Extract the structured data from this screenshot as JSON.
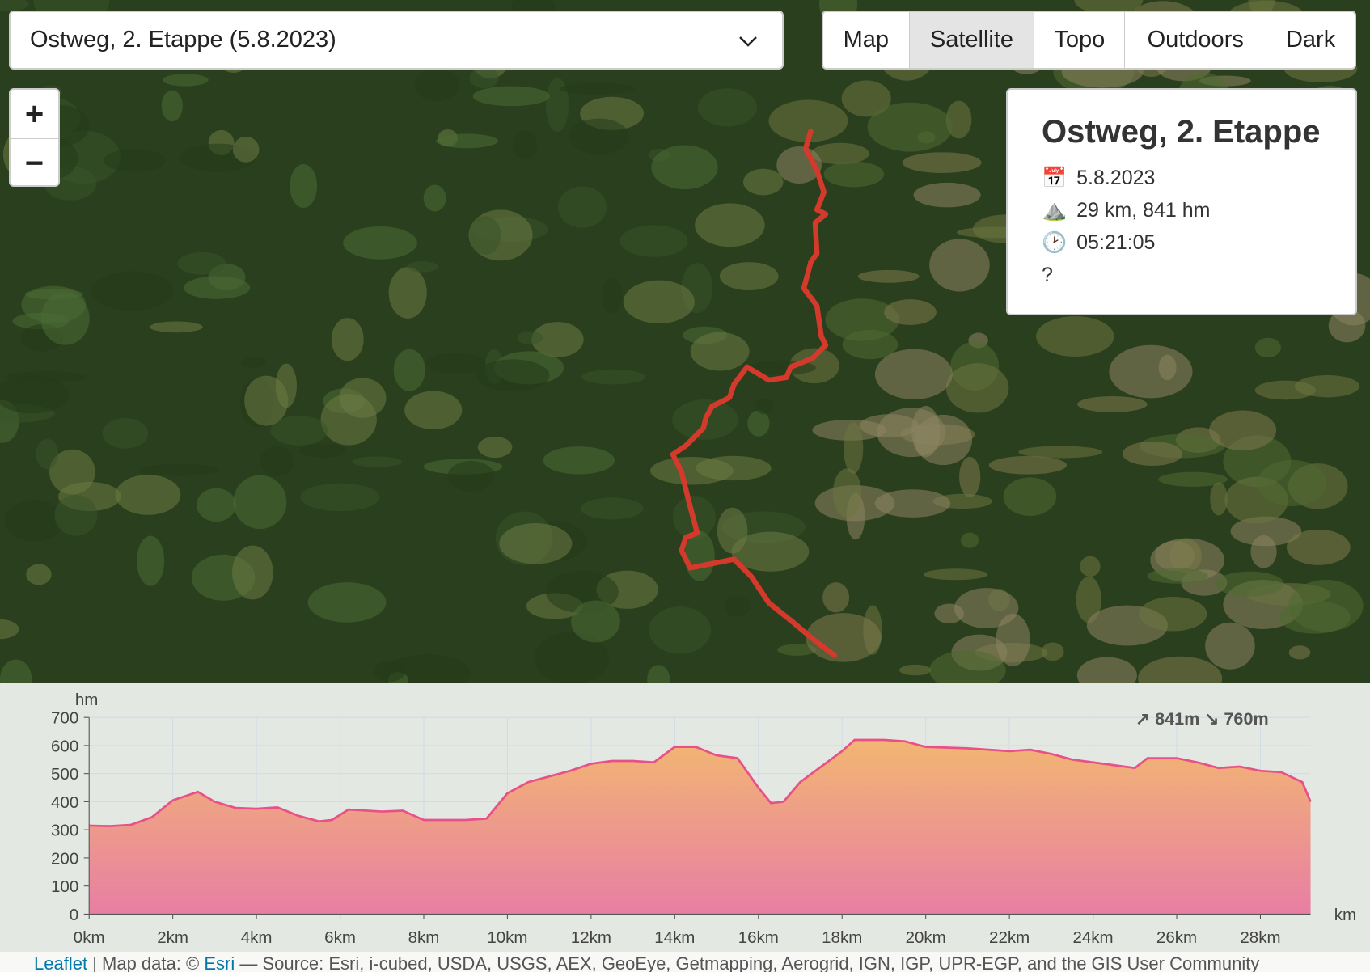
{
  "route_select": "Ostweg, 2. Etappe (5.8.2023)",
  "zoom": {
    "in": "+",
    "out": "−"
  },
  "layers": {
    "items": [
      "Map",
      "Satellite",
      "Topo",
      "Outdoors",
      "Dark"
    ],
    "active": 1
  },
  "info": {
    "title": "Ostweg, 2. Etappe",
    "rows": [
      {
        "icon": "📅",
        "text": "5.8.2023"
      },
      {
        "icon": "⛰️",
        "text": "29 km, 841 hm"
      },
      {
        "icon": "🕑",
        "text": "05:21:05"
      }
    ],
    "note": "?"
  },
  "chart_data": {
    "type": "area",
    "y_label": "hm",
    "x_unit": "km",
    "summary": "↗ 841m ↘ 760m",
    "color": "#e8508a",
    "grid": true,
    "x": [
      0,
      0.5,
      1,
      1.5,
      2,
      2.6,
      3,
      3.5,
      4,
      4.5,
      5,
      5.5,
      5.8,
      6.2,
      7,
      7.5,
      8,
      9,
      9.5,
      10,
      10.5,
      11,
      11.5,
      12,
      12.5,
      13,
      13.5,
      14,
      14.5,
      15,
      15.5,
      16,
      16.3,
      16.6,
      17,
      17.5,
      18,
      18.3,
      19,
      19.5,
      20,
      21,
      22,
      22.5,
      23,
      23.5,
      24,
      24.5,
      25,
      25.3,
      26,
      26.5,
      27,
      27.5,
      28,
      28.5,
      29,
      29.2
    ],
    "values": [
      315,
      313,
      318,
      345,
      405,
      435,
      400,
      378,
      375,
      380,
      350,
      330,
      335,
      372,
      365,
      368,
      335,
      335,
      340,
      430,
      470,
      490,
      510,
      535,
      545,
      545,
      540,
      595,
      595,
      565,
      555,
      450,
      395,
      400,
      470,
      525,
      580,
      620,
      620,
      615,
      595,
      590,
      580,
      585,
      570,
      550,
      540,
      530,
      520,
      555,
      555,
      540,
      520,
      525,
      510,
      505,
      470,
      400
    ],
    "xlim": [
      0,
      29.2
    ],
    "ylim": [
      0,
      700
    ],
    "xticks": [
      {
        "value": 0,
        "label": "0km"
      },
      {
        "value": 2,
        "label": "2km"
      },
      {
        "value": 4,
        "label": "4km"
      },
      {
        "value": 6,
        "label": "6km"
      },
      {
        "value": 8,
        "label": "8km"
      },
      {
        "value": 10,
        "label": "10km"
      },
      {
        "value": 12,
        "label": "12km"
      },
      {
        "value": 14,
        "label": "14km"
      },
      {
        "value": 16,
        "label": "16km"
      },
      {
        "value": 18,
        "label": "18km"
      },
      {
        "value": 20,
        "label": "20km"
      },
      {
        "value": 22,
        "label": "22km"
      },
      {
        "value": 24,
        "label": "24km"
      },
      {
        "value": 26,
        "label": "26km"
      },
      {
        "value": 28,
        "label": "28km"
      }
    ],
    "yticks": [
      0,
      100,
      200,
      300,
      400,
      500,
      600,
      700
    ]
  },
  "attribution": {
    "leaflet": "Leaflet",
    "map_data": "| Map data: ©",
    "esri": "Esri",
    "source": "— Source: Esri, i-cubed, USDA, USGS, AEX, GeoEye, Getmapping, Aerogrid, IGN, IGP, UPR-EGP, and the GIS User Community"
  }
}
